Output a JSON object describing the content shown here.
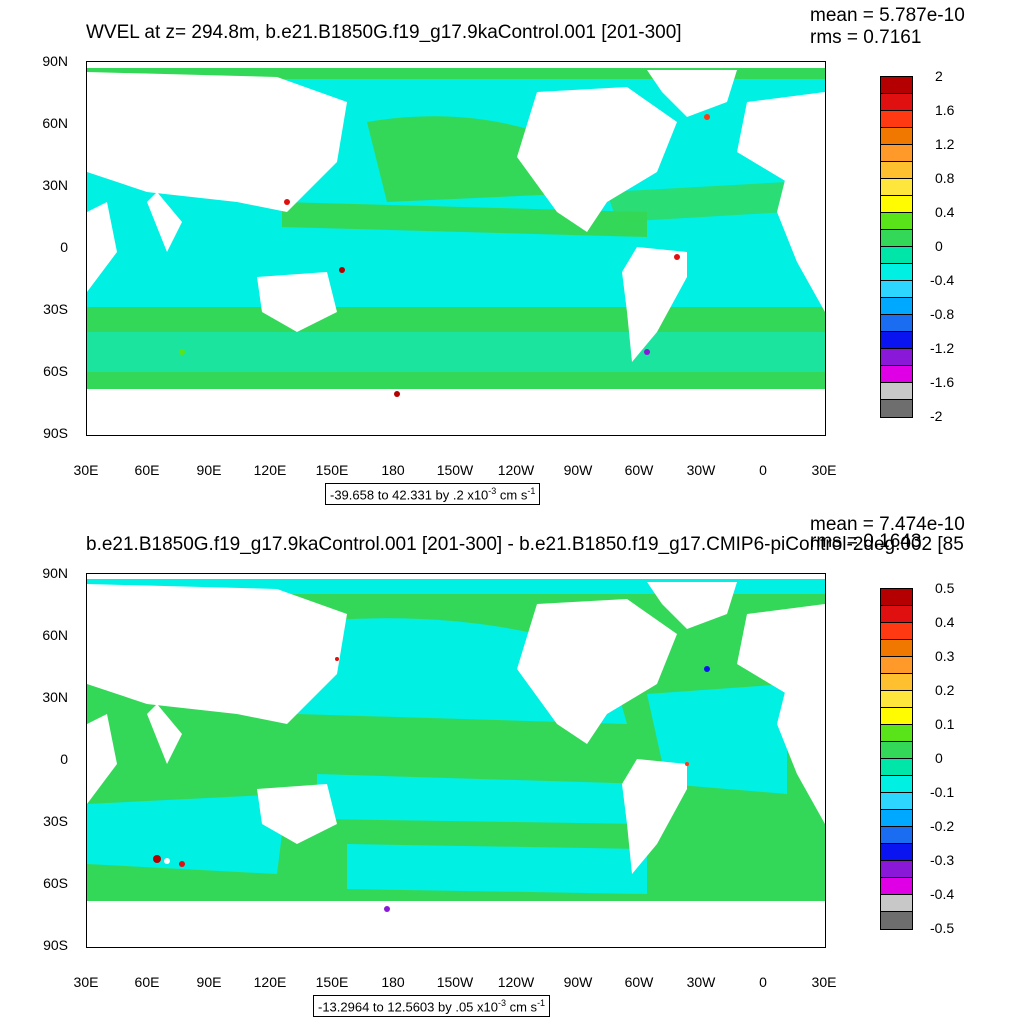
{
  "panels": [
    {
      "title": "WVEL at z= 294.8m, b.e21.B1850G.f19_g17.9kaControl.001 [201-300]",
      "mean": "mean = 5.787e-10",
      "rms": "rms = 0.7161",
      "info_prefix": "-39.658 to 42.331 by .2 x10",
      "info_exp": "-3",
      "info_units": " cm s",
      "info_units_exp": "-1",
      "colorbar_labels": [
        "2",
        "1.6",
        "1.2",
        "0.8",
        "0.4",
        "0",
        "-0.4",
        "-0.8",
        "-1.2",
        "-1.6",
        "-2"
      ]
    },
    {
      "title": "b.e21.B1850G.f19_g17.9kaControl.001 [201-300] - b.e21.B1850.f19_g17.CMIP6-piControl-2deg.002 [85",
      "mean": "mean = 7.474e-10",
      "rms": "rms = 0.1643",
      "info_prefix": "-13.2964 to 12.5603 by .05 x10",
      "info_exp": "-3",
      "info_units": " cm s",
      "info_units_exp": "-1",
      "colorbar_labels": [
        "0.5",
        "0.4",
        "0.3",
        "0.2",
        "0.1",
        "0",
        "-0.1",
        "-0.2",
        "-0.3",
        "-0.4",
        "-0.5"
      ]
    }
  ],
  "lat_labels": [
    "90N",
    "60N",
    "30N",
    "0",
    "30S",
    "60S",
    "90S"
  ],
  "lon_labels": [
    "30E",
    "60E",
    "90E",
    "120E",
    "150E",
    "180",
    "150W",
    "120W",
    "90W",
    "60W",
    "30W",
    "0",
    "30E"
  ],
  "colorbar_colors": [
    "#b40000",
    "#e01010",
    "#ff3a12",
    "#f07800",
    "#ff9a2a",
    "#ffc030",
    "#ffe63c",
    "#fffb00",
    "#59e41a",
    "#34d858",
    "#00e6a8",
    "#00f0e4",
    "#2cd6ff",
    "#00a8ff",
    "#1a6cf0",
    "#0a14f0",
    "#8a18d8",
    "#e000e6",
    "#c8c8c8",
    "#6e6e6e"
  ],
  "ocean_colors": {
    "panel1_base": "#00f0e4",
    "panel1_band": "#34d858",
    "panel2_base": "#34d858",
    "panel2_band": "#00f0e4"
  }
}
